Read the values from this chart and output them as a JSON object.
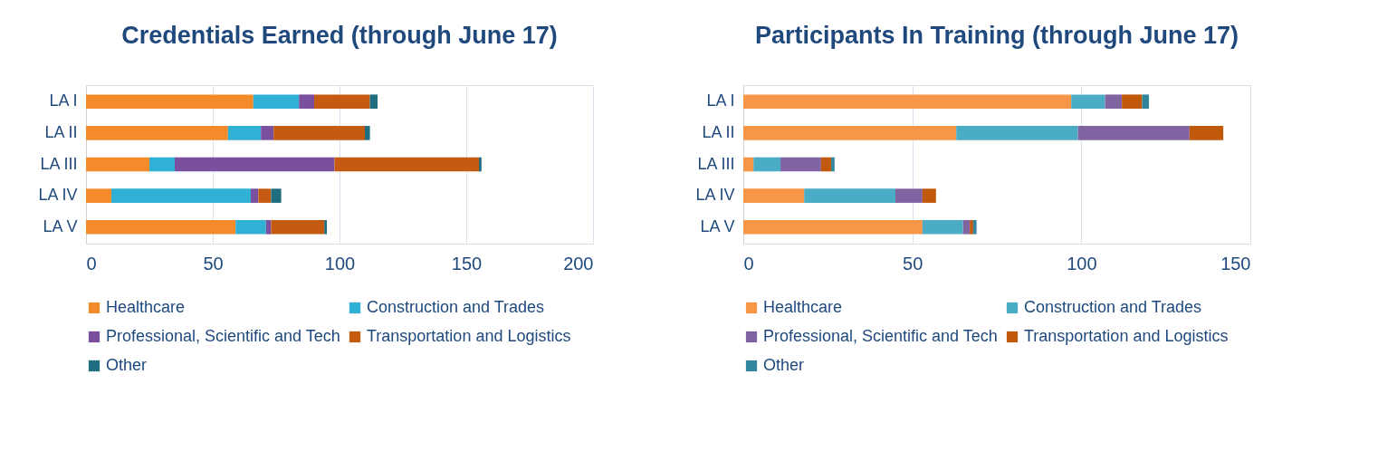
{
  "chart_data": [
    {
      "type": "bar",
      "title": "Credentials Earned (through June 17)",
      "orientation": "horizontal",
      "stacked": true,
      "categories": [
        "LA I",
        "LA II",
        "LA III",
        "LA IV",
        "LA V"
      ],
      "xlim": [
        0,
        200
      ],
      "xticks": [
        0,
        50,
        100,
        150,
        200
      ],
      "grid": "x",
      "legend": "bottom",
      "series": [
        {
          "name": "Healthcare",
          "color": "#f38b2a",
          "values": [
            66,
            56,
            25,
            10,
            59
          ]
        },
        {
          "name": "Construction and Trades",
          "color": "#31b0d5",
          "values": [
            18,
            13,
            10,
            55,
            12
          ]
        },
        {
          "name": "Professional, Scientific and Tech",
          "color": "#7a4f9e",
          "values": [
            6,
            5,
            63,
            3,
            2
          ]
        },
        {
          "name": "Transportation and Logistics",
          "color": "#c55a11",
          "values": [
            22,
            36,
            57,
            5,
            21
          ]
        },
        {
          "name": "Other",
          "color": "#1f6e7f",
          "values": [
            3,
            2,
            1,
            4,
            1
          ]
        }
      ]
    },
    {
      "type": "bar",
      "title": "Participants In Training (through June 17)",
      "orientation": "horizontal",
      "stacked": true,
      "categories": [
        "LA I",
        "LA II",
        "LA III",
        "LA IV",
        "LA V"
      ],
      "xlim": [
        0,
        150
      ],
      "xticks": [
        0,
        50,
        100,
        150
      ],
      "grid": "x",
      "legend": "bottom",
      "series": [
        {
          "name": "Healthcare",
          "color": "#f79646",
          "values": [
            97,
            63,
            3,
            18,
            53
          ]
        },
        {
          "name": "Construction and Trades",
          "color": "#4bacc6",
          "values": [
            10,
            36,
            8,
            27,
            12
          ]
        },
        {
          "name": "Professional, Scientific and Tech",
          "color": "#8064a2",
          "values": [
            5,
            33,
            12,
            8,
            2
          ]
        },
        {
          "name": "Transportation and Logistics",
          "color": "#c0590a",
          "values": [
            6,
            10,
            3,
            4,
            1
          ]
        },
        {
          "name": "Other",
          "color": "#31859c",
          "values": [
            2,
            0,
            1,
            0,
            1
          ]
        }
      ]
    }
  ]
}
